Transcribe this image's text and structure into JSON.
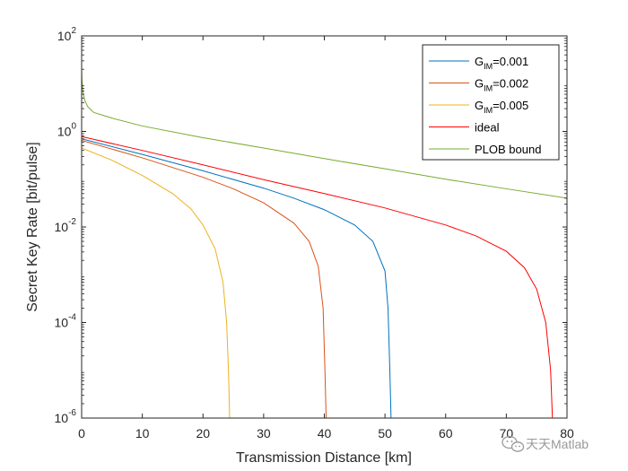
{
  "chart_data": {
    "type": "line",
    "xlabel": "Transmission Distance [km]",
    "ylabel": "Secret Key Rate [bit/pulse]",
    "xlim": [
      0,
      80
    ],
    "ylim": [
      1e-06,
      100
    ],
    "yscale": "log",
    "x_ticks": [
      "0",
      "10",
      "20",
      "30",
      "40",
      "50",
      "60",
      "70",
      "80"
    ],
    "y_ticks": [
      {
        "base": "10",
        "exp": "2",
        "value": 100
      },
      {
        "base": "10",
        "exp": "0",
        "value": 1
      },
      {
        "base": "10",
        "exp": "-2",
        "value": 0.01
      },
      {
        "base": "10",
        "exp": "-4",
        "value": 0.0001
      },
      {
        "base": "10",
        "exp": "-6",
        "value": 1e-06
      }
    ],
    "grid": false,
    "legend_position": "top-right",
    "series": [
      {
        "name_main": "G",
        "name_sub": "IM",
        "name_rest": "=0.001",
        "color": "#0072BD",
        "x": [
          0,
          10,
          20,
          30,
          35,
          40,
          45,
          48,
          50,
          50.5,
          50.8,
          51
        ],
        "y": [
          0.7,
          0.33,
          0.15,
          0.065,
          0.04,
          0.023,
          0.011,
          0.005,
          0.0012,
          0.0002,
          1e-05,
          1e-06
        ]
      },
      {
        "name_main": "G",
        "name_sub": "IM",
        "name_rest": "=0.002",
        "color": "#D95319",
        "x": [
          0,
          10,
          20,
          25,
          30,
          35,
          37.5,
          39,
          39.8,
          40.1,
          40.3
        ],
        "y": [
          0.65,
          0.28,
          0.11,
          0.063,
          0.032,
          0.012,
          0.005,
          0.0015,
          0.0002,
          1e-05,
          1e-06
        ]
      },
      {
        "name_main": "G",
        "name_sub": "IM",
        "name_rest": "=0.005",
        "color": "#EDB120",
        "x": [
          0,
          5,
          10,
          15,
          18,
          20,
          22,
          23.3,
          23.9,
          24.2,
          24.4
        ],
        "y": [
          0.45,
          0.25,
          0.12,
          0.05,
          0.024,
          0.011,
          0.0035,
          0.0007,
          0.0001,
          1e-05,
          1e-06
        ]
      },
      {
        "name_main": "ideal",
        "name_sub": "",
        "name_rest": "",
        "color": "#FF0000",
        "x": [
          0,
          10,
          20,
          30,
          40,
          50,
          60,
          65,
          70,
          73,
          75,
          76.5,
          77.3,
          77.6
        ],
        "y": [
          0.78,
          0.4,
          0.2,
          0.098,
          0.05,
          0.025,
          0.011,
          0.0065,
          0.0031,
          0.0014,
          0.0005,
          0.0001,
          1e-05,
          1e-06
        ]
      },
      {
        "name_main": "PLOB bound",
        "name_sub": "",
        "name_rest": "",
        "color": "#77AC30",
        "x": [
          0,
          0.05,
          0.2,
          0.5,
          1,
          2,
          5,
          10,
          20,
          30,
          40,
          50,
          60,
          70,
          80
        ],
        "y": [
          20,
          12,
          7,
          4.5,
          3.3,
          2.5,
          1.9,
          1.3,
          0.74,
          0.45,
          0.27,
          0.165,
          0.1,
          0.063,
          0.04
        ]
      }
    ]
  },
  "watermark": {
    "text": "天天Matlab",
    "icon": "wechat-icon"
  }
}
